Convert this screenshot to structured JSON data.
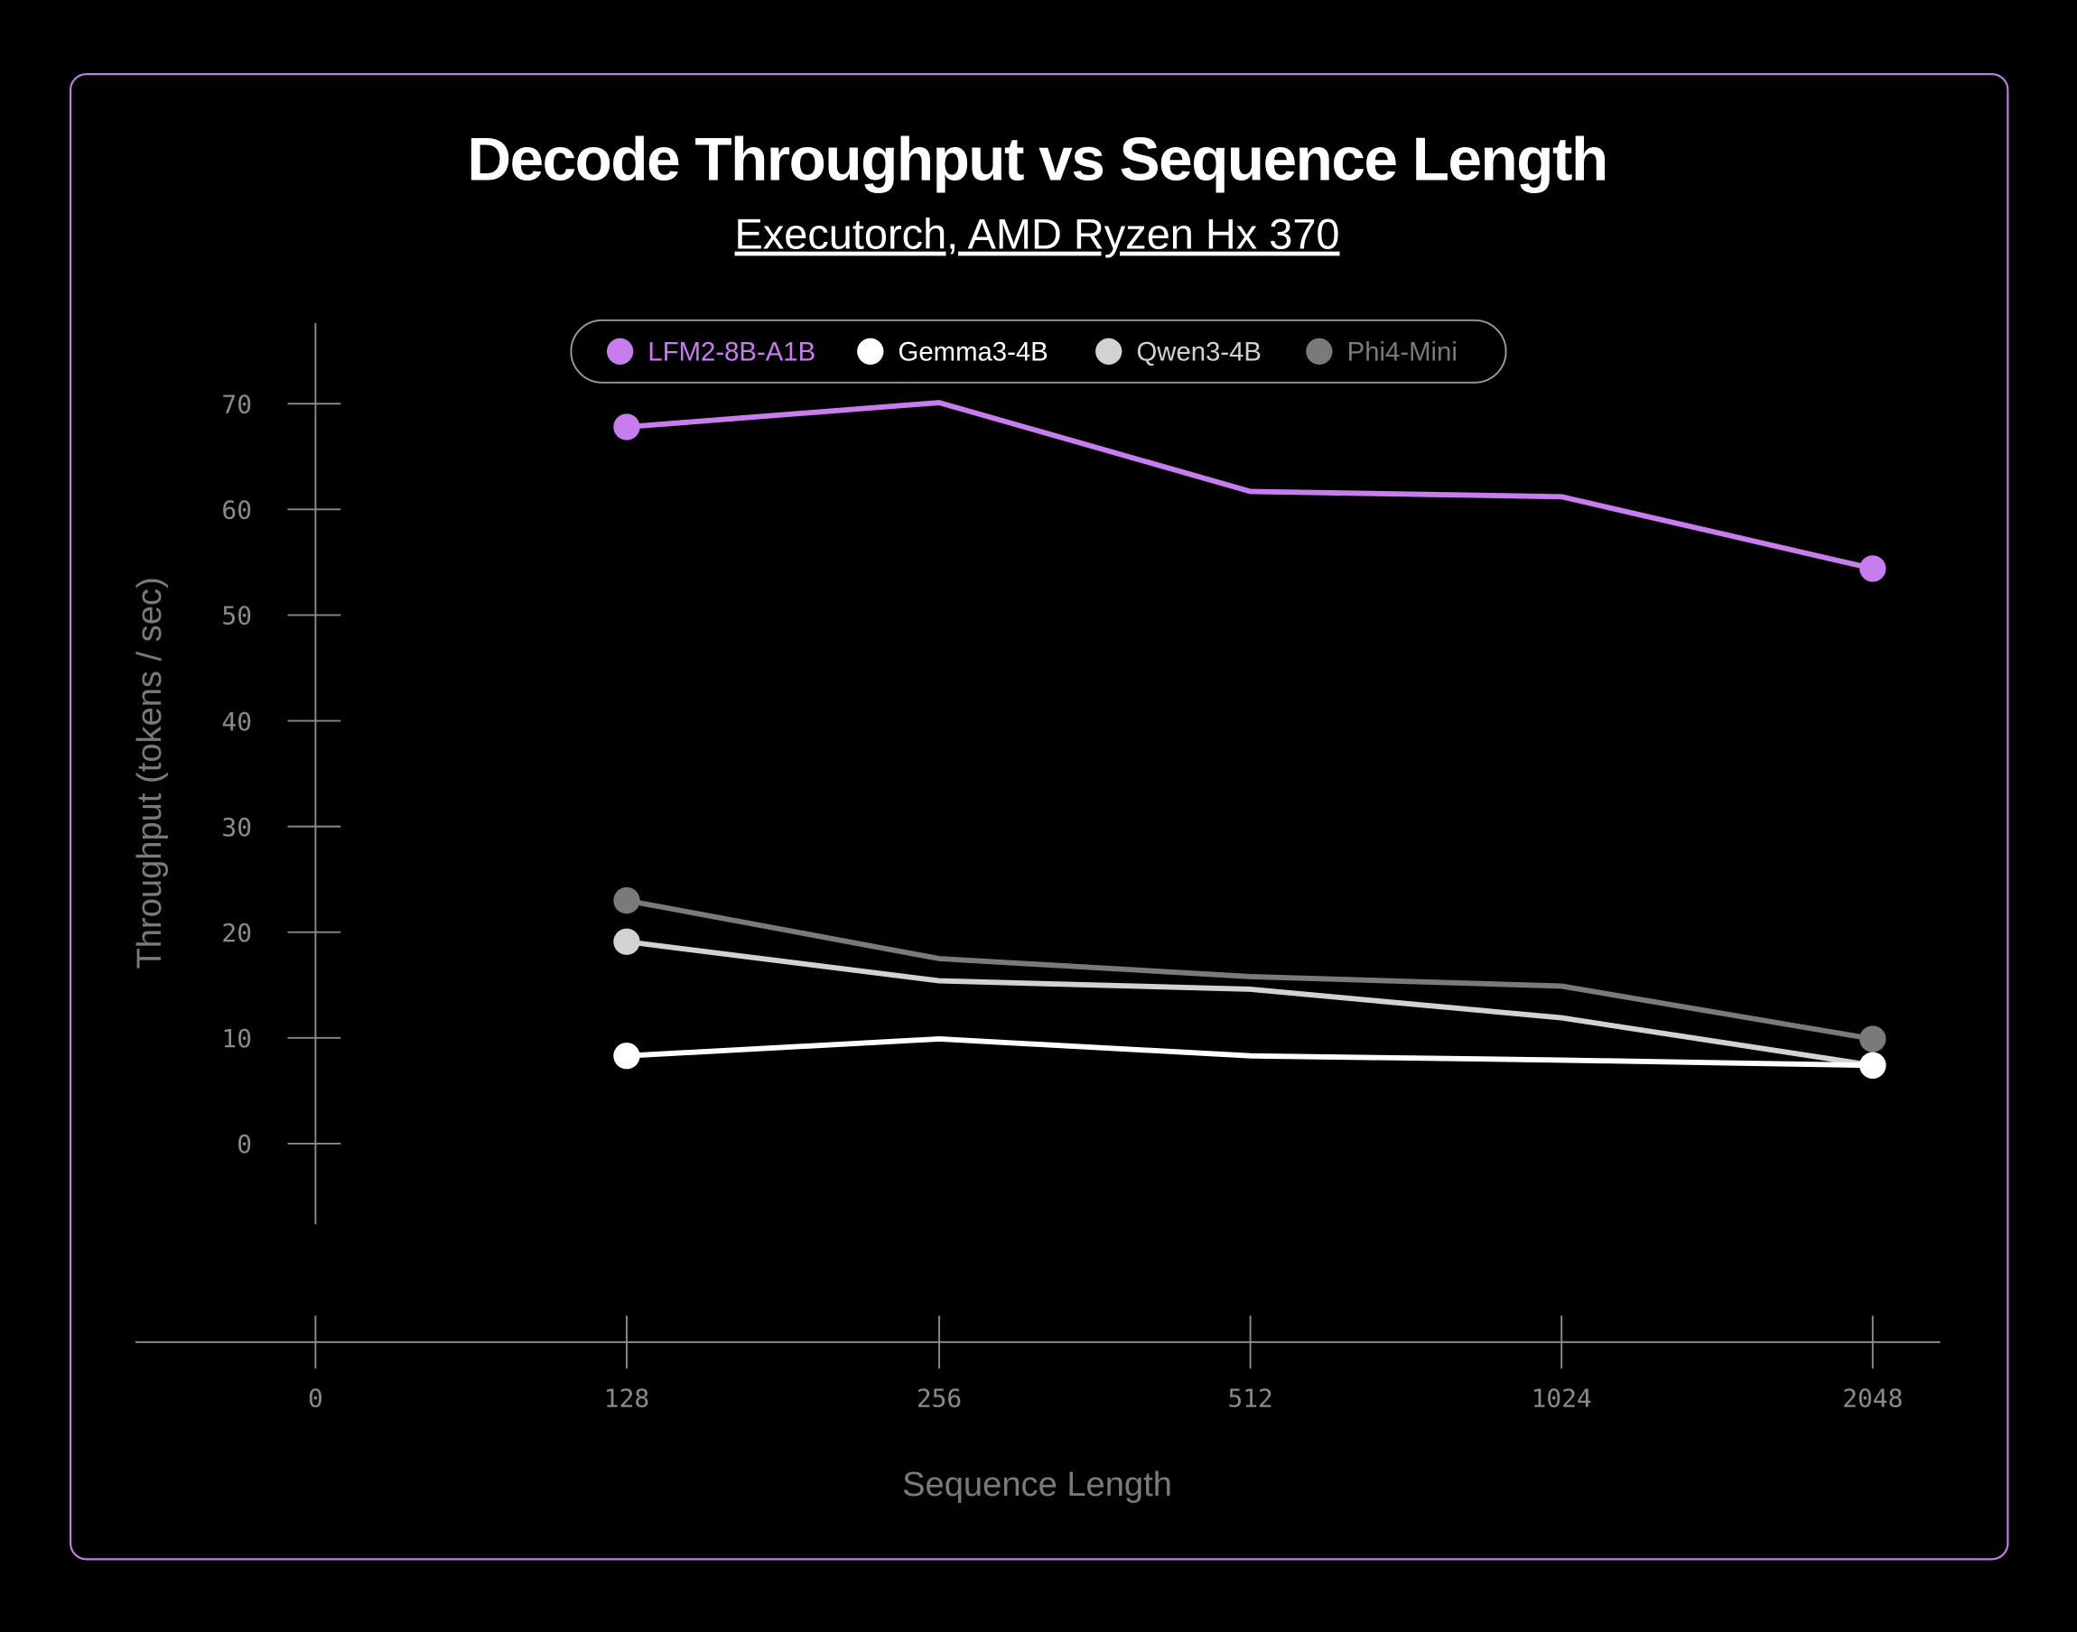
{
  "chart_data": {
    "type": "line",
    "title": "Decode Throughput vs Sequence Length",
    "subtitle": "Executorch, AMD Ryzen Hx 370",
    "xlabel": "Sequence Length",
    "ylabel": "Throughput (tokens / sec)",
    "x_tick_labels": [
      "0",
      "128",
      "256",
      "512",
      "1024",
      "2048"
    ],
    "x": [
      "128",
      "256",
      "512",
      "1024",
      "2048"
    ],
    "y_tick_labels": [
      "0",
      "10",
      "20",
      "30",
      "40",
      "50",
      "60",
      "70"
    ],
    "ylim": [
      0,
      70
    ],
    "grid": false,
    "legend_position": "top-center",
    "series": [
      {
        "name": "LFM2-8B-A1B",
        "color": "#c77ded",
        "values": [
          67.8,
          70.1,
          61.7,
          61.2,
          54.4
        ]
      },
      {
        "name": "Gemma3-4B",
        "color": "#ffffff",
        "values": [
          8.3,
          9.9,
          8.3,
          7.9,
          7.4
        ]
      },
      {
        "name": "Qwen3-4B",
        "color": "#d2d2d2",
        "values": [
          19.1,
          15.4,
          14.6,
          11.9,
          7.4
        ]
      },
      {
        "name": "Phi4-Mini",
        "color": "#7a7a7a",
        "values": [
          23.0,
          17.5,
          15.8,
          14.9,
          9.9
        ]
      }
    ],
    "frame_color": "#b97fe0"
  }
}
